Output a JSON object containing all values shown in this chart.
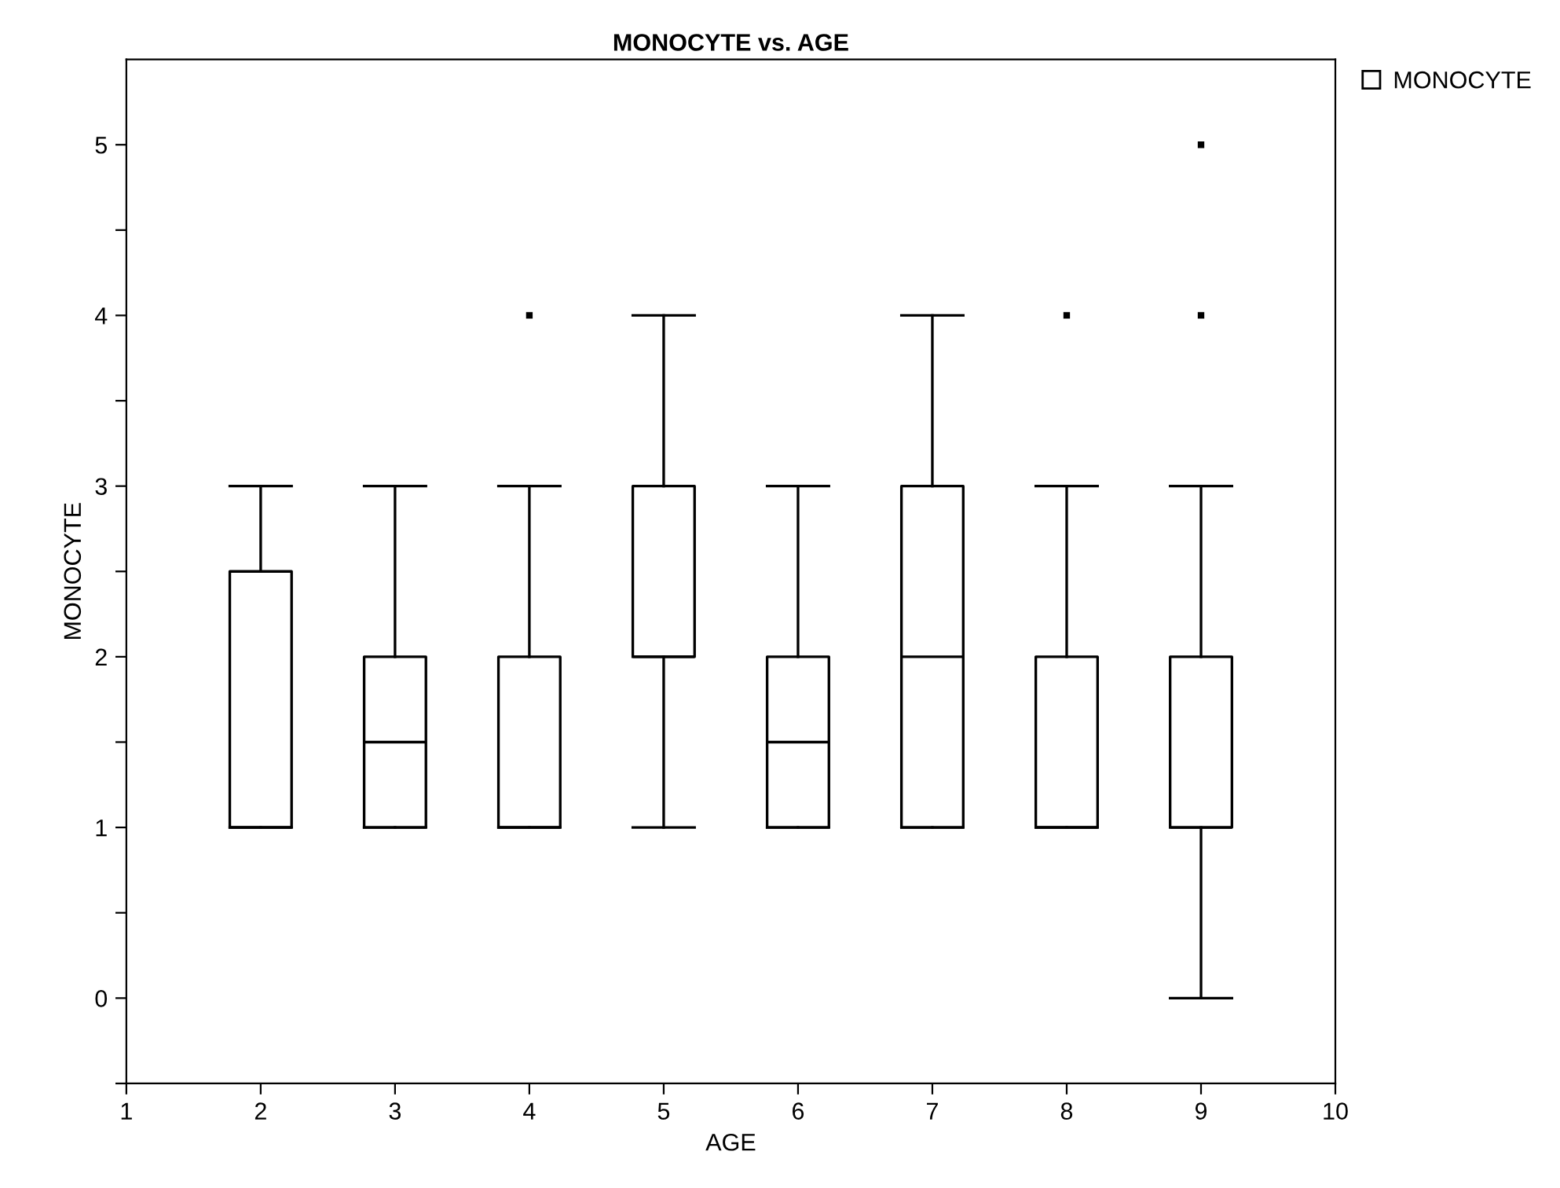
{
  "chart_data": {
    "type": "box",
    "title": "MONOCYTE vs. AGE",
    "xlabel": "AGE",
    "ylabel": "MONOCYTE",
    "x": [
      2,
      3,
      4,
      5,
      6,
      7,
      8,
      9
    ],
    "xlim": [
      1,
      10
    ],
    "xticks": [
      1,
      2,
      3,
      4,
      5,
      6,
      7,
      8,
      9,
      10
    ],
    "ylim": [
      -0.5,
      5.5
    ],
    "yticks": [
      {
        "value": -0.5,
        "label": null
      },
      0,
      {
        "value": 0.5,
        "label": null
      },
      1,
      {
        "value": 1.5,
        "label": null
      },
      2,
      {
        "value": 2.5,
        "label": null
      },
      3,
      {
        "value": 3.5,
        "label": null
      },
      4,
      {
        "value": 4.5,
        "label": null
      },
      5
    ],
    "grid": false,
    "legend": "top right",
    "series": [
      {
        "name": "MONOCYTE",
        "color": "#000000",
        "boxes": [
          {
            "low": 1,
            "q1": 1,
            "median": 1,
            "q3": 2.5,
            "high": 3
          },
          {
            "low": 1,
            "q1": 1,
            "median": 1.5,
            "q3": 2,
            "high": 3
          },
          {
            "low": 1,
            "q1": 1,
            "median": 1,
            "q3": 2,
            "high": 3,
            "outliers": [
              4
            ]
          },
          {
            "low": 1,
            "q1": 2,
            "median": 2,
            "q3": 3,
            "high": 4
          },
          {
            "low": 1,
            "q1": 1,
            "median": 1.5,
            "q3": 2,
            "high": 3
          },
          {
            "low": 1,
            "q1": 1,
            "median": 2,
            "q3": 3,
            "high": 4
          },
          {
            "low": 1,
            "q1": 1,
            "median": 1,
            "q3": 2,
            "high": 3,
            "outliers": [
              4
            ]
          },
          {
            "low": 0,
            "q1": 1,
            "median": 1,
            "q3": 2,
            "high": 3,
            "outliers": [
              4,
              5
            ]
          }
        ]
      }
    ]
  }
}
